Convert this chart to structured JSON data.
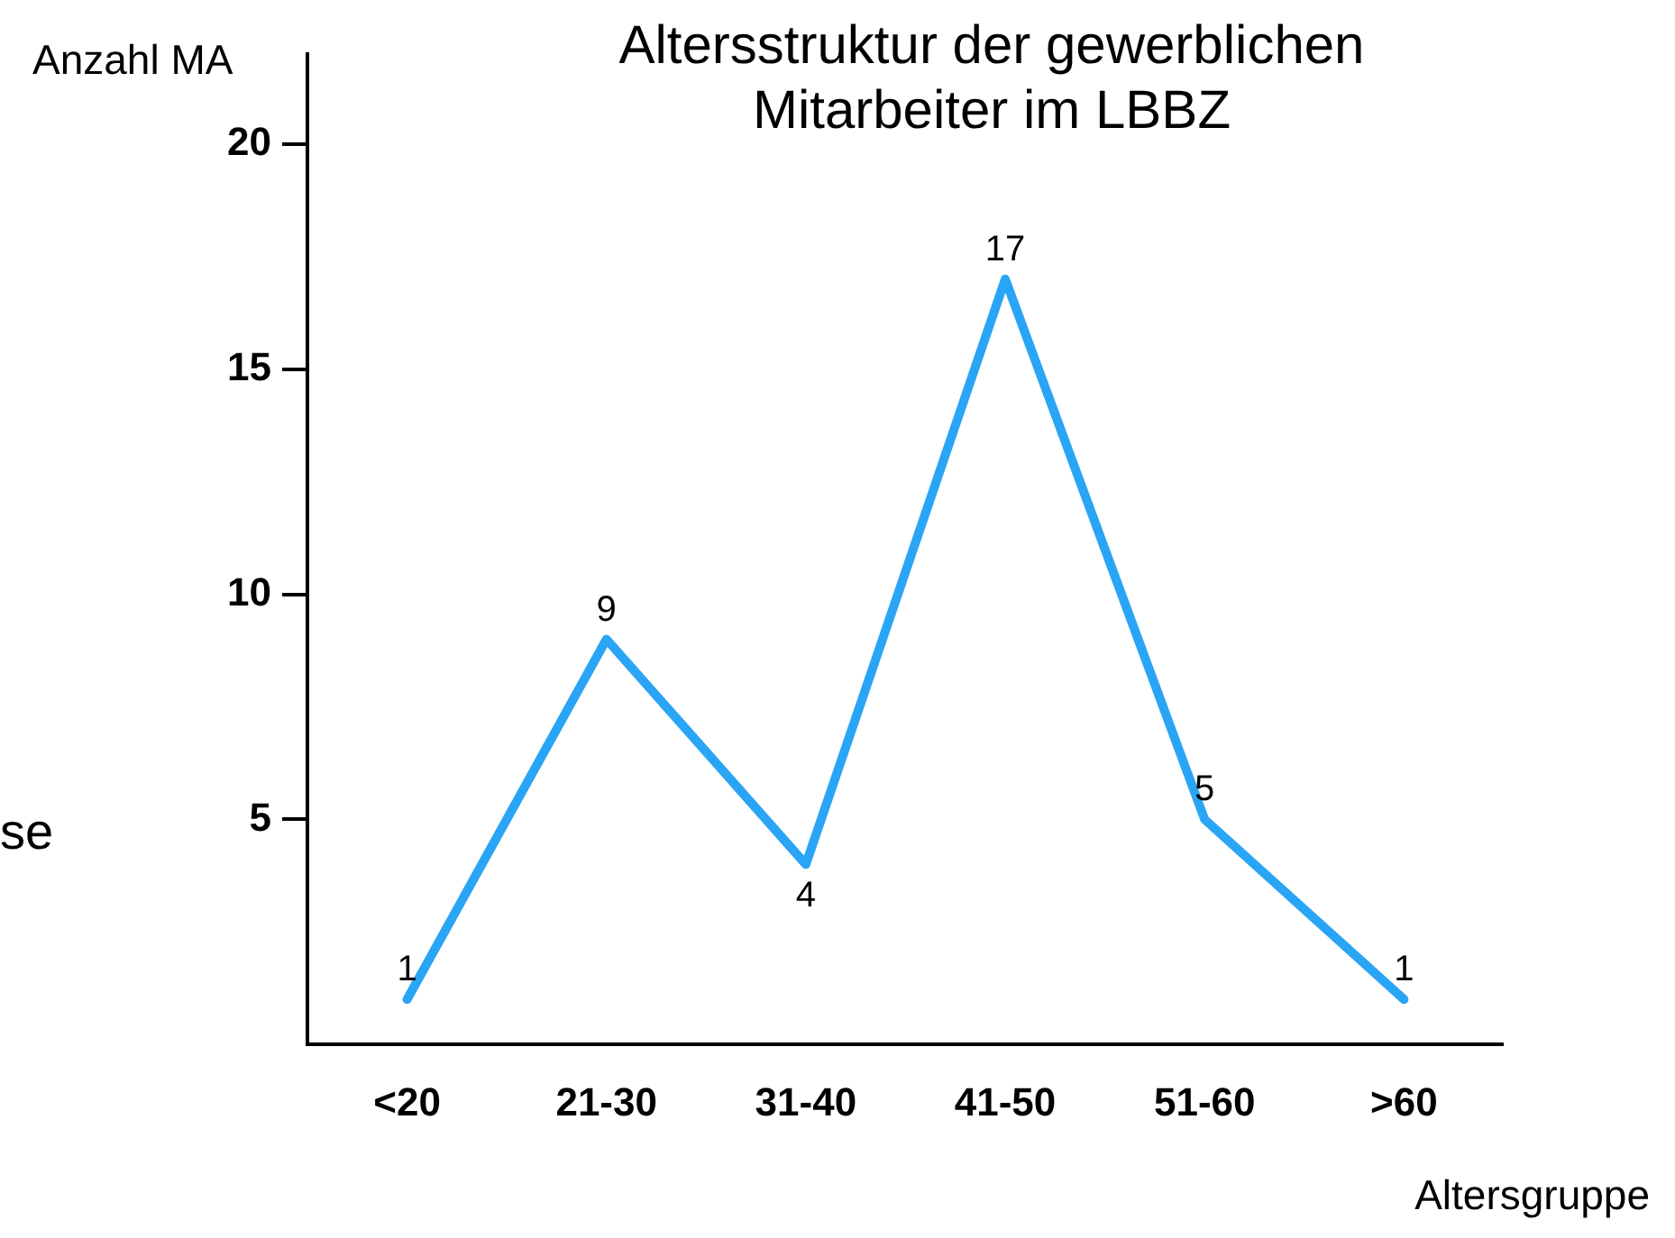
{
  "chart_data": {
    "type": "line",
    "title": "Altersstruktur der gewerblichen Mitarbeiter im LBBZ",
    "ylabel": "Anzahl MA",
    "xlabel": "Altersgruppe",
    "annotations": [
      "se"
    ],
    "categories": [
      "<20",
      "21-30",
      "31-40",
      "41-50",
      "51-60",
      ">60"
    ],
    "series": [
      {
        "color": "#2aa5f5",
        "values": [
          1,
          9,
          4,
          17,
          5,
          1
        ]
      }
    ],
    "ylim": [
      0,
      22
    ],
    "yticks": [
      5,
      10,
      15,
      20
    ],
    "grid": false,
    "legend": false,
    "marker": "none",
    "line_style": "solid",
    "data_labels": true
  }
}
